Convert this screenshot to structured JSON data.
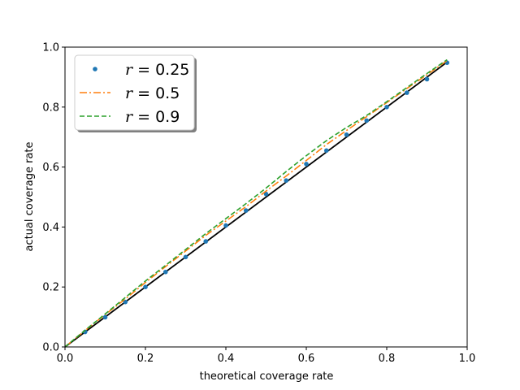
{
  "chart_data": {
    "type": "line",
    "xlabel": "theoretical coverage rate",
    "ylabel": "actual coverage rate",
    "xlim": [
      0,
      1
    ],
    "ylim": [
      0,
      1
    ],
    "xticks": [
      0.0,
      0.2,
      0.4,
      0.6,
      0.8,
      1.0
    ],
    "yticks": [
      0.0,
      0.2,
      0.4,
      0.6,
      0.8,
      1.0
    ],
    "xtick_labels": [
      "0.0",
      "0.2",
      "0.4",
      "0.6",
      "0.8",
      "1.0"
    ],
    "ytick_labels": [
      "0.0",
      "0.2",
      "0.4",
      "0.6",
      "0.8",
      "1.0"
    ],
    "grid": false,
    "legend_position": "top-left",
    "reference_line": {
      "x": [
        0.0,
        0.95
      ],
      "y": [
        0.0,
        0.95
      ],
      "color": "#000000"
    },
    "series": [
      {
        "name": "r = 0.25",
        "name_var": "r",
        "name_value": "0.25",
        "style": "points",
        "color": "#1f77b4",
        "x": [
          0.05,
          0.1,
          0.15,
          0.2,
          0.25,
          0.3,
          0.35,
          0.4,
          0.45,
          0.5,
          0.55,
          0.6,
          0.65,
          0.7,
          0.75,
          0.8,
          0.85,
          0.9,
          0.95
        ],
        "y": [
          0.05,
          0.099,
          0.15,
          0.2,
          0.25,
          0.3,
          0.352,
          0.405,
          0.455,
          0.51,
          0.555,
          0.61,
          0.655,
          0.708,
          0.755,
          0.8,
          0.848,
          0.893,
          0.948
        ]
      },
      {
        "name": "r = 0.5",
        "name_var": "r",
        "name_value": "0.5",
        "style": "dash-dot",
        "color": "#ff7f0e",
        "x": [
          0.0,
          0.05,
          0.1,
          0.15,
          0.2,
          0.25,
          0.3,
          0.35,
          0.4,
          0.45,
          0.5,
          0.55,
          0.6,
          0.65,
          0.7,
          0.75,
          0.8,
          0.85,
          0.9,
          0.95
        ],
        "y": [
          0.0,
          0.055,
          0.108,
          0.16,
          0.215,
          0.268,
          0.32,
          0.372,
          0.42,
          0.468,
          0.52,
          0.57,
          0.622,
          0.675,
          0.722,
          0.768,
          0.815,
          0.862,
          0.908,
          0.955
        ]
      },
      {
        "name": "r = 0.9",
        "name_var": "r",
        "name_value": "0.9",
        "style": "dashed",
        "color": "#2ca02c",
        "x": [
          0.0,
          0.05,
          0.1,
          0.15,
          0.2,
          0.25,
          0.3,
          0.35,
          0.4,
          0.45,
          0.5,
          0.55,
          0.6,
          0.65,
          0.7,
          0.75,
          0.8,
          0.85,
          0.9,
          0.95
        ],
        "y": [
          0.0,
          0.056,
          0.11,
          0.165,
          0.22,
          0.272,
          0.325,
          0.378,
          0.428,
          0.478,
          0.53,
          0.585,
          0.638,
          0.688,
          0.732,
          0.772,
          0.818,
          0.865,
          0.912,
          0.958
        ]
      }
    ]
  }
}
